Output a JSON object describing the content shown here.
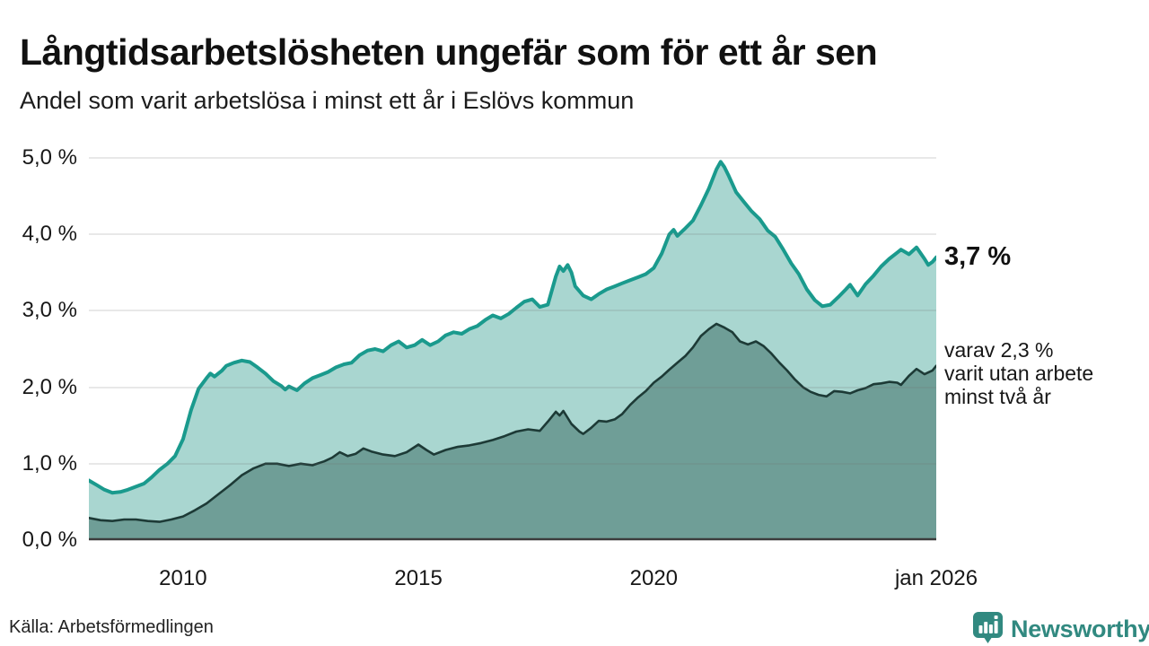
{
  "header": {
    "title": "Långtidsarbetslösheten ungefär som för ett år sen",
    "subtitle": "Andel som varit arbetslösa i minst ett år i Eslövs kommun"
  },
  "annotations": {
    "latest_value": "3,7 %",
    "secondary": [
      "varav 2,3 %",
      "varit utan arbete",
      "minst två år"
    ]
  },
  "footer": {
    "source": "Källa: Arbetsförmedlingen",
    "brand_name": "Newsworthy",
    "brand_icon": "newsworthy-chart-pin-icon",
    "brand_color": "#318980"
  },
  "colors": {
    "line_one_year": "#1a9a8d",
    "fill_one_year": "#a9d6d0",
    "line_two_years": "#1d3a36",
    "fill_two_years": "#6f9e97",
    "gridline": "#e4e4e4",
    "axis": "#3c3c3c",
    "background": "#ffffff"
  },
  "chart_data": {
    "type": "area",
    "title": "Långtidsarbetslösheten ungefär som för ett år sen",
    "subtitle": "Andel som varit arbetslösa i minst ett år i Eslövs kommun",
    "source": "Källa: Arbetsförmedlingen",
    "unit": "%",
    "grid": "horizontal",
    "x_axis": {
      "range": [
        2008,
        2026
      ],
      "ticks": [
        {
          "label": "2010",
          "value": 2010
        },
        {
          "label": "2015",
          "value": 2015
        },
        {
          "label": "2020",
          "value": 2020
        },
        {
          "label": "jan 2026",
          "value": 2026
        }
      ]
    },
    "y_axis": {
      "range": [
        0,
        5
      ],
      "ticks": [
        {
          "label": "0,0 %",
          "value": 0
        },
        {
          "label": "1,0 %",
          "value": 1
        },
        {
          "label": "2,0 %",
          "value": 2
        },
        {
          "label": "3,0 %",
          "value": 3
        },
        {
          "label": "4,0 %",
          "value": 4
        },
        {
          "label": "5,0 %",
          "value": 5
        }
      ]
    },
    "series": [
      {
        "name": "Arbetslösa minst ett år",
        "end_label": "3,7 %",
        "latest_value": 3.7,
        "color": "#1a9a8d",
        "fill": "#a9d6d0",
        "points": [
          [
            2008.0,
            0.78
          ],
          [
            2008.17,
            0.72
          ],
          [
            2008.33,
            0.66
          ],
          [
            2008.5,
            0.62
          ],
          [
            2008.67,
            0.63
          ],
          [
            2008.83,
            0.66
          ],
          [
            2009.0,
            0.7
          ],
          [
            2009.17,
            0.74
          ],
          [
            2009.33,
            0.82
          ],
          [
            2009.5,
            0.92
          ],
          [
            2009.67,
            1.0
          ],
          [
            2009.83,
            1.1
          ],
          [
            2010.0,
            1.32
          ],
          [
            2010.17,
            1.7
          ],
          [
            2010.33,
            1.98
          ],
          [
            2010.5,
            2.12
          ],
          [
            2010.58,
            2.18
          ],
          [
            2010.67,
            2.14
          ],
          [
            2010.83,
            2.22
          ],
          [
            2010.92,
            2.28
          ],
          [
            2011.08,
            2.32
          ],
          [
            2011.25,
            2.35
          ],
          [
            2011.42,
            2.33
          ],
          [
            2011.58,
            2.26
          ],
          [
            2011.75,
            2.18
          ],
          [
            2011.92,
            2.08
          ],
          [
            2012.08,
            2.02
          ],
          [
            2012.17,
            1.97
          ],
          [
            2012.25,
            2.01
          ],
          [
            2012.42,
            1.96
          ],
          [
            2012.58,
            2.05
          ],
          [
            2012.75,
            2.12
          ],
          [
            2012.92,
            2.16
          ],
          [
            2013.08,
            2.2
          ],
          [
            2013.25,
            2.26
          ],
          [
            2013.42,
            2.3
          ],
          [
            2013.58,
            2.32
          ],
          [
            2013.75,
            2.42
          ],
          [
            2013.92,
            2.48
          ],
          [
            2014.08,
            2.5
          ],
          [
            2014.25,
            2.47
          ],
          [
            2014.42,
            2.55
          ],
          [
            2014.58,
            2.6
          ],
          [
            2014.75,
            2.52
          ],
          [
            2014.92,
            2.55
          ],
          [
            2015.08,
            2.62
          ],
          [
            2015.25,
            2.55
          ],
          [
            2015.42,
            2.6
          ],
          [
            2015.58,
            2.68
          ],
          [
            2015.75,
            2.72
          ],
          [
            2015.92,
            2.7
          ],
          [
            2016.08,
            2.76
          ],
          [
            2016.25,
            2.8
          ],
          [
            2016.42,
            2.88
          ],
          [
            2016.58,
            2.94
          ],
          [
            2016.75,
            2.9
          ],
          [
            2016.92,
            2.96
          ],
          [
            2017.08,
            3.04
          ],
          [
            2017.25,
            3.12
          ],
          [
            2017.42,
            3.15
          ],
          [
            2017.58,
            3.05
          ],
          [
            2017.75,
            3.08
          ],
          [
            2017.92,
            3.45
          ],
          [
            2018.0,
            3.58
          ],
          [
            2018.08,
            3.52
          ],
          [
            2018.17,
            3.6
          ],
          [
            2018.25,
            3.5
          ],
          [
            2018.33,
            3.32
          ],
          [
            2018.5,
            3.2
          ],
          [
            2018.67,
            3.15
          ],
          [
            2018.83,
            3.22
          ],
          [
            2019.0,
            3.28
          ],
          [
            2019.17,
            3.32
          ],
          [
            2019.33,
            3.36
          ],
          [
            2019.5,
            3.4
          ],
          [
            2019.67,
            3.44
          ],
          [
            2019.83,
            3.48
          ],
          [
            2020.0,
            3.56
          ],
          [
            2020.17,
            3.75
          ],
          [
            2020.33,
            4.0
          ],
          [
            2020.42,
            4.06
          ],
          [
            2020.5,
            3.98
          ],
          [
            2020.67,
            4.08
          ],
          [
            2020.83,
            4.18
          ],
          [
            2021.0,
            4.38
          ],
          [
            2021.17,
            4.6
          ],
          [
            2021.33,
            4.85
          ],
          [
            2021.42,
            4.95
          ],
          [
            2021.5,
            4.88
          ],
          [
            2021.58,
            4.78
          ],
          [
            2021.75,
            4.55
          ],
          [
            2021.92,
            4.42
          ],
          [
            2022.08,
            4.3
          ],
          [
            2022.25,
            4.2
          ],
          [
            2022.42,
            4.05
          ],
          [
            2022.58,
            3.97
          ],
          [
            2022.75,
            3.8
          ],
          [
            2022.92,
            3.62
          ],
          [
            2023.08,
            3.48
          ],
          [
            2023.25,
            3.28
          ],
          [
            2023.42,
            3.14
          ],
          [
            2023.58,
            3.06
          ],
          [
            2023.75,
            3.08
          ],
          [
            2023.92,
            3.18
          ],
          [
            2024.08,
            3.28
          ],
          [
            2024.17,
            3.34
          ],
          [
            2024.33,
            3.2
          ],
          [
            2024.5,
            3.35
          ],
          [
            2024.67,
            3.46
          ],
          [
            2024.83,
            3.58
          ],
          [
            2025.0,
            3.68
          ],
          [
            2025.17,
            3.76
          ],
          [
            2025.25,
            3.8
          ],
          [
            2025.42,
            3.74
          ],
          [
            2025.58,
            3.83
          ],
          [
            2025.75,
            3.68
          ],
          [
            2025.83,
            3.6
          ],
          [
            2025.92,
            3.64
          ],
          [
            2026.0,
            3.7
          ]
        ]
      },
      {
        "name": "Arbetslösa minst två år",
        "end_label": "varav 2,3 % varit utan arbete minst två år",
        "latest_value": 2.3,
        "color": "#1d3a36",
        "fill": "#6f9e97",
        "points": [
          [
            2008.0,
            0.29
          ],
          [
            2008.25,
            0.26
          ],
          [
            2008.5,
            0.25
          ],
          [
            2008.75,
            0.27
          ],
          [
            2009.0,
            0.27
          ],
          [
            2009.25,
            0.25
          ],
          [
            2009.5,
            0.24
          ],
          [
            2009.75,
            0.27
          ],
          [
            2010.0,
            0.31
          ],
          [
            2010.25,
            0.39
          ],
          [
            2010.5,
            0.48
          ],
          [
            2010.75,
            0.6
          ],
          [
            2011.0,
            0.72
          ],
          [
            2011.25,
            0.85
          ],
          [
            2011.5,
            0.94
          ],
          [
            2011.75,
            1.0
          ],
          [
            2012.0,
            1.0
          ],
          [
            2012.25,
            0.97
          ],
          [
            2012.5,
            1.0
          ],
          [
            2012.75,
            0.98
          ],
          [
            2013.0,
            1.03
          ],
          [
            2013.17,
            1.08
          ],
          [
            2013.33,
            1.15
          ],
          [
            2013.5,
            1.1
          ],
          [
            2013.67,
            1.13
          ],
          [
            2013.83,
            1.2
          ],
          [
            2014.0,
            1.16
          ],
          [
            2014.25,
            1.12
          ],
          [
            2014.5,
            1.1
          ],
          [
            2014.75,
            1.15
          ],
          [
            2015.0,
            1.25
          ],
          [
            2015.17,
            1.18
          ],
          [
            2015.33,
            1.12
          ],
          [
            2015.58,
            1.18
          ],
          [
            2015.83,
            1.22
          ],
          [
            2016.08,
            1.24
          ],
          [
            2016.33,
            1.27
          ],
          [
            2016.58,
            1.31
          ],
          [
            2016.83,
            1.36
          ],
          [
            2017.08,
            1.42
          ],
          [
            2017.33,
            1.45
          ],
          [
            2017.58,
            1.43
          ],
          [
            2017.75,
            1.55
          ],
          [
            2017.92,
            1.68
          ],
          [
            2018.0,
            1.63
          ],
          [
            2018.08,
            1.69
          ],
          [
            2018.25,
            1.52
          ],
          [
            2018.42,
            1.42
          ],
          [
            2018.5,
            1.39
          ],
          [
            2018.67,
            1.47
          ],
          [
            2018.83,
            1.56
          ],
          [
            2019.0,
            1.55
          ],
          [
            2019.17,
            1.58
          ],
          [
            2019.33,
            1.65
          ],
          [
            2019.5,
            1.77
          ],
          [
            2019.67,
            1.87
          ],
          [
            2019.83,
            1.95
          ],
          [
            2020.0,
            2.06
          ],
          [
            2020.17,
            2.14
          ],
          [
            2020.33,
            2.23
          ],
          [
            2020.5,
            2.32
          ],
          [
            2020.67,
            2.41
          ],
          [
            2020.83,
            2.52
          ],
          [
            2021.0,
            2.67
          ],
          [
            2021.17,
            2.76
          ],
          [
            2021.33,
            2.83
          ],
          [
            2021.5,
            2.78
          ],
          [
            2021.67,
            2.72
          ],
          [
            2021.83,
            2.6
          ],
          [
            2022.0,
            2.56
          ],
          [
            2022.17,
            2.6
          ],
          [
            2022.33,
            2.54
          ],
          [
            2022.5,
            2.44
          ],
          [
            2022.67,
            2.32
          ],
          [
            2022.83,
            2.22
          ],
          [
            2023.0,
            2.1
          ],
          [
            2023.17,
            2.0
          ],
          [
            2023.33,
            1.94
          ],
          [
            2023.5,
            1.9
          ],
          [
            2023.67,
            1.88
          ],
          [
            2023.83,
            1.95
          ],
          [
            2024.0,
            1.94
          ],
          [
            2024.17,
            1.92
          ],
          [
            2024.33,
            1.96
          ],
          [
            2024.5,
            1.99
          ],
          [
            2024.67,
            2.04
          ],
          [
            2024.83,
            2.05
          ],
          [
            2025.0,
            2.07
          ],
          [
            2025.17,
            2.06
          ],
          [
            2025.25,
            2.03
          ],
          [
            2025.42,
            2.15
          ],
          [
            2025.58,
            2.24
          ],
          [
            2025.75,
            2.17
          ],
          [
            2025.92,
            2.22
          ],
          [
            2026.0,
            2.28
          ]
        ]
      }
    ]
  }
}
